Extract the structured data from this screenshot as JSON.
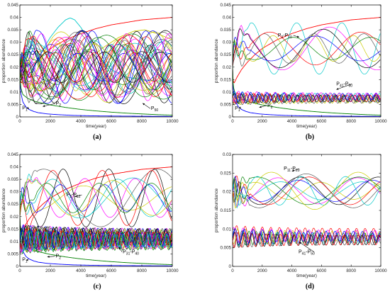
{
  "chart_data": [
    {
      "type": "line",
      "panel_label": "(a)",
      "xlabel": "time(year)",
      "ylabel": "proportion abundance",
      "xlim": [
        0,
        10000
      ],
      "ylim": [
        0,
        0.045
      ],
      "xticks": [
        "0",
        "2000",
        "4000",
        "6000",
        "8000",
        "10000"
      ],
      "yticks": [
        "0",
        "0.005",
        "0.01",
        "0.015",
        "0.02",
        "0.025",
        "0.03",
        "0.035",
        "0.04",
        "0.045"
      ],
      "annotations": [
        {
          "text": "P",
          "sub": "1",
          "x": 600,
          "y": 0.0032,
          "tx": 150,
          "ty": 0.003
        },
        {
          "text": "P",
          "sub": "2",
          "x": 1500,
          "y": 0.0042,
          "tx": 2350,
          "ty": 0.0048
        },
        {
          "text": "P",
          "sub": "50",
          "x": 8050,
          "y": 0.0055,
          "tx": 8600,
          "ty": 0.0028
        }
      ],
      "series_groups": [
        {
          "kind": "dominant",
          "color": "#ff0000",
          "x": [
            0,
            20,
            100,
            300,
            600,
            1000,
            1500,
            2000,
            3000,
            4000,
            5000,
            6000,
            7000,
            8000,
            9000,
            10000
          ],
          "y": [
            0.02,
            0.015,
            0.0135,
            0.016,
            0.019,
            0.022,
            0.025,
            0.0275,
            0.031,
            0.0335,
            0.0355,
            0.037,
            0.038,
            0.039,
            0.0395,
            0.04
          ]
        },
        {
          "kind": "decay",
          "color": "#0000ff",
          "x": [
            0,
            50,
            200,
            400,
            600,
            900,
            1200,
            1800,
            2500,
            3500,
            5000,
            7000,
            10000
          ],
          "y": [
            0.02,
            0.01,
            0.006,
            0.004,
            0.003,
            0.0022,
            0.0017,
            0.0012,
            0.0009,
            0.0006,
            0.0004,
            0.0003,
            0.0002
          ]
        },
        {
          "kind": "decay",
          "color": "#008000",
          "x": [
            0,
            50,
            200,
            500,
            1000,
            2000,
            3000,
            4000,
            5000,
            6000,
            7000,
            8000,
            9000,
            10000
          ],
          "y": [
            0.02,
            0.012,
            0.009,
            0.0075,
            0.0062,
            0.0048,
            0.0038,
            0.003,
            0.0024,
            0.0019,
            0.0015,
            0.0012,
            0.0009,
            0.0007
          ]
        },
        {
          "kind": "hump",
          "color": "#00c8c8",
          "x": [
            0,
            200,
            600,
            1000,
            1500,
            2000,
            2500,
            3000,
            3300,
            3600,
            4000,
            4500,
            5000,
            5500,
            6000,
            7000,
            8000,
            9000,
            10000
          ],
          "y": [
            0.02,
            0.014,
            0.017,
            0.021,
            0.027,
            0.032,
            0.036,
            0.039,
            0.0398,
            0.039,
            0.036,
            0.031,
            0.026,
            0.022,
            0.019,
            0.016,
            0.015,
            0.0145,
            0.014
          ]
        },
        {
          "kind": "hump",
          "color": "#cccc00",
          "x": [
            0,
            200,
            800,
            1500,
            2500,
            3500,
            4500,
            5500,
            6500,
            7500,
            8200,
            9000,
            10000
          ],
          "y": [
            0.02,
            0.014,
            0.013,
            0.014,
            0.016,
            0.019,
            0.023,
            0.028,
            0.032,
            0.0345,
            0.035,
            0.0335,
            0.031
          ]
        },
        {
          "kind": "oscillating",
          "count": 40,
          "range": [
            0.005,
            0.035
          ]
        }
      ]
    },
    {
      "type": "line",
      "panel_label": "(b)",
      "xlabel": "time(year)",
      "ylabel": "proportion abundance",
      "xlim": [
        0,
        10000
      ],
      "ylim": [
        0,
        0.045
      ],
      "xticks": [
        "0",
        "2000",
        "4000",
        "6000",
        "8000",
        "10000"
      ],
      "yticks": [
        "0",
        "0.005",
        "0.01",
        "0.015",
        "0.02",
        "0.025",
        "0.03",
        "0.035",
        "0.04",
        "0.045"
      ],
      "annotations": [
        {
          "text": "P",
          "sub": "1",
          "x": 550,
          "y": 0.0032,
          "tx": 150,
          "ty": 0.0028
        },
        {
          "text": "P",
          "sub": "2",
          "x": 1800,
          "y": 0.0038,
          "tx": 2350,
          "ty": 0.004
        },
        {
          "text": "P",
          "sub": "3",
          "sub2": "10",
          "sep": "-P",
          "x": 4500,
          "y": 0.032,
          "tx": 3050,
          "ty": 0.0322
        },
        {
          "text": "P",
          "sub": "41",
          "sub2": "50",
          "sep": "-P",
          "x": 7000,
          "y": 0.011,
          "tx": 7000,
          "ty": 0.0127
        }
      ],
      "series_groups": [
        {
          "kind": "dominant",
          "color": "#ff0000"
        },
        {
          "kind": "decay",
          "color": "#0000ff"
        },
        {
          "kind": "decay",
          "color": "#008000"
        },
        {
          "kind": "oscillating",
          "count": 8,
          "range": [
            0.015,
            0.04
          ]
        },
        {
          "kind": "band",
          "count": 10,
          "range": [
            0.005,
            0.01
          ]
        }
      ]
    },
    {
      "type": "line",
      "panel_label": "(c)",
      "xlabel": "time(year)",
      "ylabel": "proportion abundance",
      "xlim": [
        0,
        10000
      ],
      "ylim": [
        0,
        0.045
      ],
      "xticks": [
        "0",
        "2000",
        "4000",
        "6000",
        "8000",
        "10000"
      ],
      "yticks": [
        "0",
        "0.005",
        "0.01",
        "0.015",
        "0.02",
        "0.025",
        "0.03",
        "0.035",
        "0.04",
        "0.045"
      ],
      "annotations": [
        {
          "text": "P",
          "sub": "1",
          "x": 550,
          "y": 0.003,
          "tx": 150,
          "ty": 0.0022
        },
        {
          "text": "P",
          "sub": "2",
          "x": 1800,
          "y": 0.0038,
          "tx": 2350,
          "ty": 0.0035
        },
        {
          "text": "P",
          "sub": "3",
          "sub2": "12",
          "sep": "-P",
          "x": 3600,
          "y": 0.028,
          "tx": 3050,
          "ty": 0.0282
        },
        {
          "text": "P",
          "sub": "31",
          "sub2": "40",
          "sep": "-P",
          "x": 6500,
          "y": 0.0078,
          "tx": 6750,
          "ty": 0.0052
        }
      ],
      "series_groups": [
        {
          "kind": "dominant",
          "color": "#ff0000"
        },
        {
          "kind": "decay",
          "color": "#0000ff"
        },
        {
          "kind": "decay",
          "color": "#008000"
        },
        {
          "kind": "oscillating",
          "count": 10,
          "range": [
            0.015,
            0.04
          ]
        },
        {
          "kind": "band",
          "count": 28,
          "range": [
            0.006,
            0.016
          ]
        }
      ]
    },
    {
      "type": "line",
      "panel_label": "(d)",
      "xlabel": "time(year)",
      "ylabel": "proportion abundance",
      "xlim": [
        0,
        10000
      ],
      "ylim": [
        0,
        0.03
      ],
      "xticks": [
        "0",
        "2000",
        "4000",
        "6000",
        "8000",
        "10000"
      ],
      "yticks": [
        "0",
        "0.005",
        "0.01",
        "0.015",
        "0.02",
        "0.025",
        "0.03"
      ],
      "annotations": [
        {
          "text": "P",
          "sub": "11",
          "sub2": "20",
          "sep": "-P",
          "x": 4000,
          "y": 0.0255,
          "tx": 3450,
          "ty": 0.0258
        },
        {
          "text": "P",
          "sub": "41",
          "sub2": "50",
          "sep": "-P",
          "x": 4500,
          "y": 0.0065,
          "tx": 4450,
          "ty": 0.0035
        }
      ],
      "series_groups": [
        {
          "kind": "oscillating",
          "count": 10,
          "range": [
            0.014,
            0.0265
          ]
        },
        {
          "kind": "band",
          "count": 10,
          "range": [
            0.0055,
            0.0105
          ]
        }
      ]
    }
  ],
  "colors": [
    "#ff0000",
    "#0000ff",
    "#008000",
    "#00c8c8",
    "#cccc00",
    "#ff00ff",
    "#000000",
    "#5a5a5a"
  ]
}
